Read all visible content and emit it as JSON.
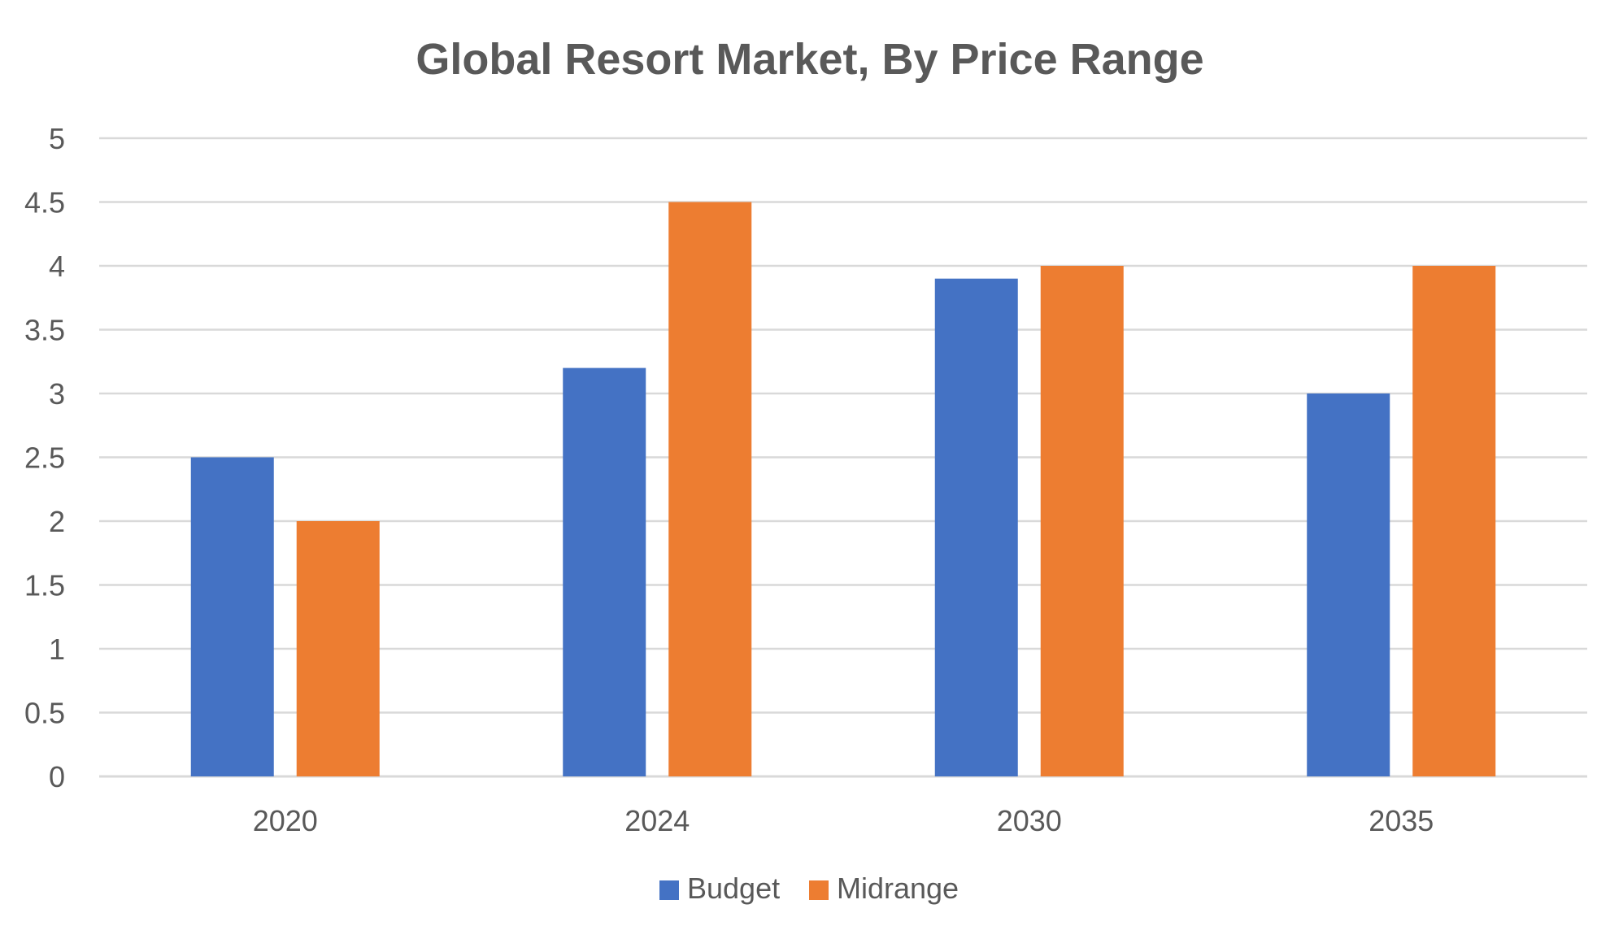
{
  "chart_data": {
    "type": "bar",
    "title": "Global Resort Market, By Price Range",
    "xlabel": "",
    "ylabel": "",
    "categories": [
      "2020",
      "2024",
      "2030",
      "2035"
    ],
    "series": [
      {
        "name": "Budget",
        "values": [
          2.5,
          3.2,
          3.9,
          3.0
        ],
        "color": "#4472C4"
      },
      {
        "name": "Midrange",
        "values": [
          2.0,
          4.5,
          4.0,
          4.0
        ],
        "color": "#ED7D31"
      }
    ],
    "ylim": [
      0,
      5
    ],
    "yticks": [
      "0",
      "0.5",
      "1",
      "1.5",
      "2",
      "2.5",
      "3",
      "3.5",
      "4",
      "4.5",
      "5"
    ],
    "grid": true,
    "gridColor": "#D9D9D9",
    "legend_position": "bottom"
  }
}
